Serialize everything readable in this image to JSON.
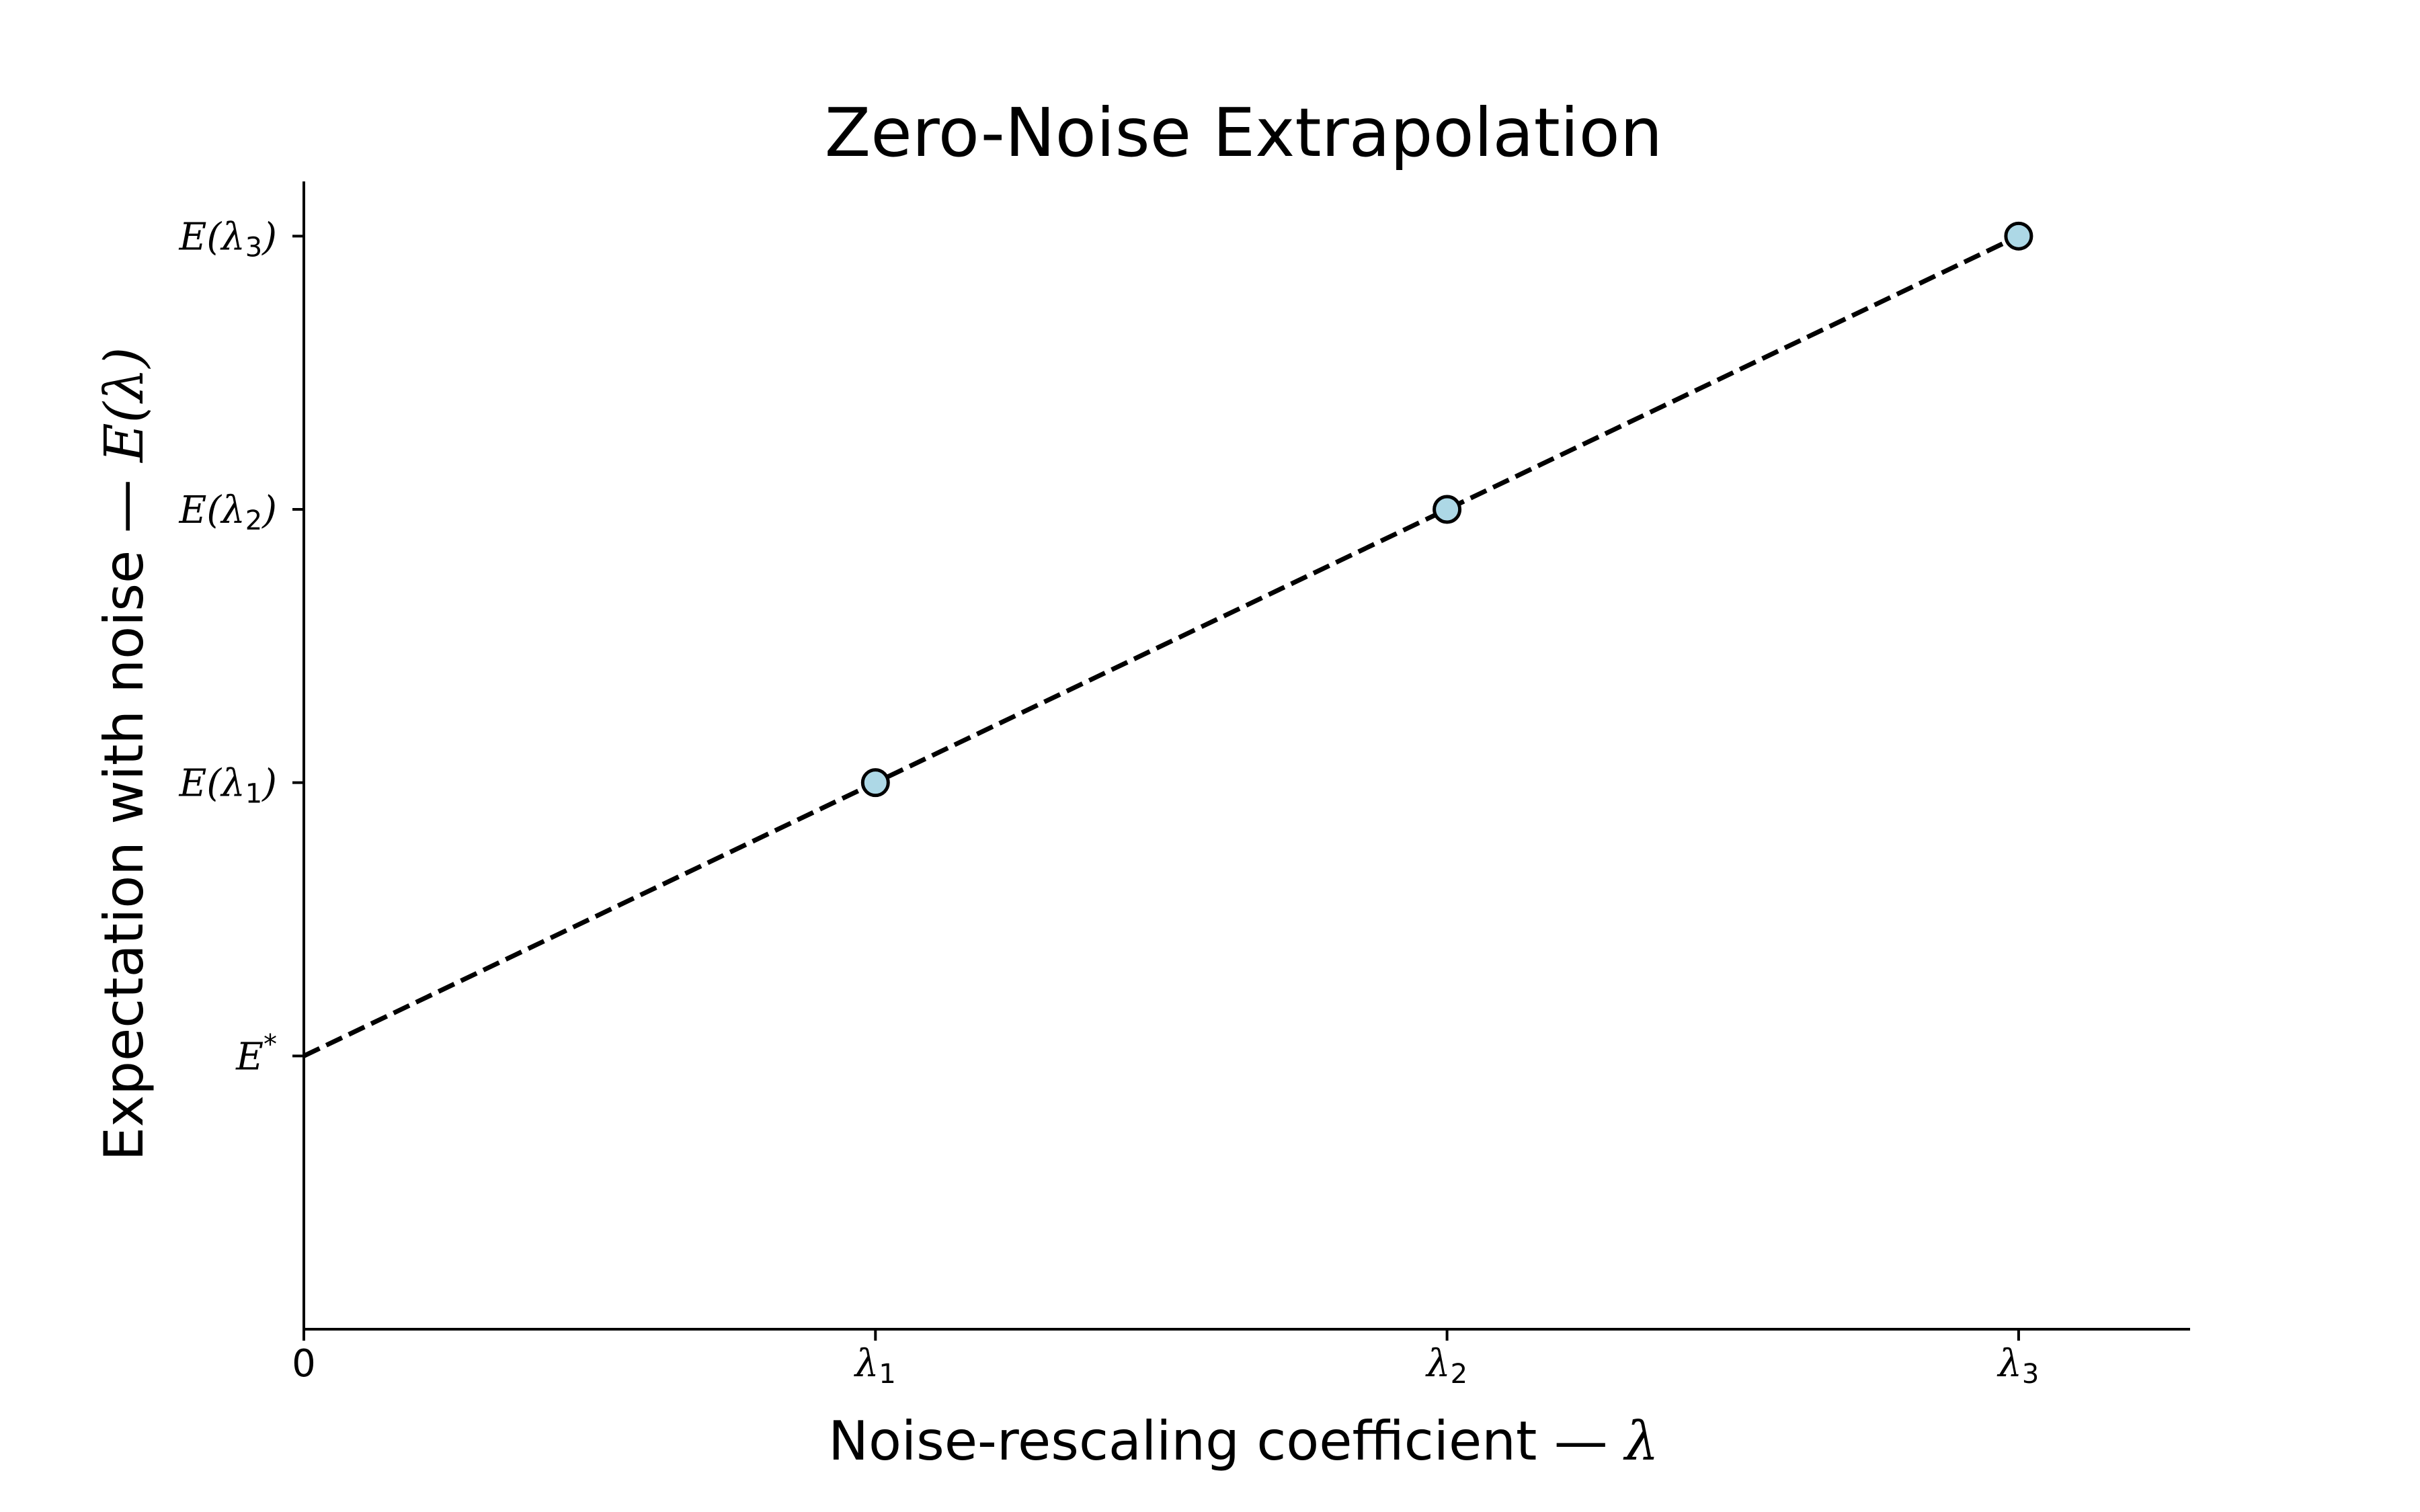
{
  "chart_data": {
    "type": "scatter",
    "title": "Zero-Noise Extrapolation",
    "xlabel": {
      "text": "Noise-rescaling coefficient — ",
      "symbol": "λ"
    },
    "ylabel": {
      "text": "Expectation with noise — ",
      "symbol": "E(λ)"
    },
    "xlim": [
      0,
      3.3
    ],
    "ylim": [
      -1,
      3.2
    ],
    "x_ticks": [
      {
        "value": 0,
        "label": "0"
      },
      {
        "value": 1,
        "label": "λ",
        "sub": "1"
      },
      {
        "value": 2,
        "label": "λ",
        "sub": "2"
      },
      {
        "value": 3,
        "label": "λ",
        "sub": "3"
      }
    ],
    "y_ticks": [
      {
        "value": 0,
        "label": "E",
        "sup": "*"
      },
      {
        "value": 1,
        "label": "E(λ",
        "sub": "1",
        "close": ")"
      },
      {
        "value": 2,
        "label": "E(λ",
        "sub": "2",
        "close": ")"
      },
      {
        "value": 3,
        "label": "E(λ",
        "sub": "3",
        "close": ")"
      }
    ],
    "points": {
      "x": [
        1,
        2,
        3
      ],
      "y": [
        1,
        2,
        3
      ],
      "marker_fill": "#add8e6",
      "marker_edge": "#000000"
    },
    "fit_line": {
      "x": [
        0,
        3
      ],
      "y": [
        0,
        3
      ],
      "style": "dashed",
      "color": "#000000"
    },
    "grid": false,
    "spines": [
      "left",
      "bottom"
    ]
  }
}
